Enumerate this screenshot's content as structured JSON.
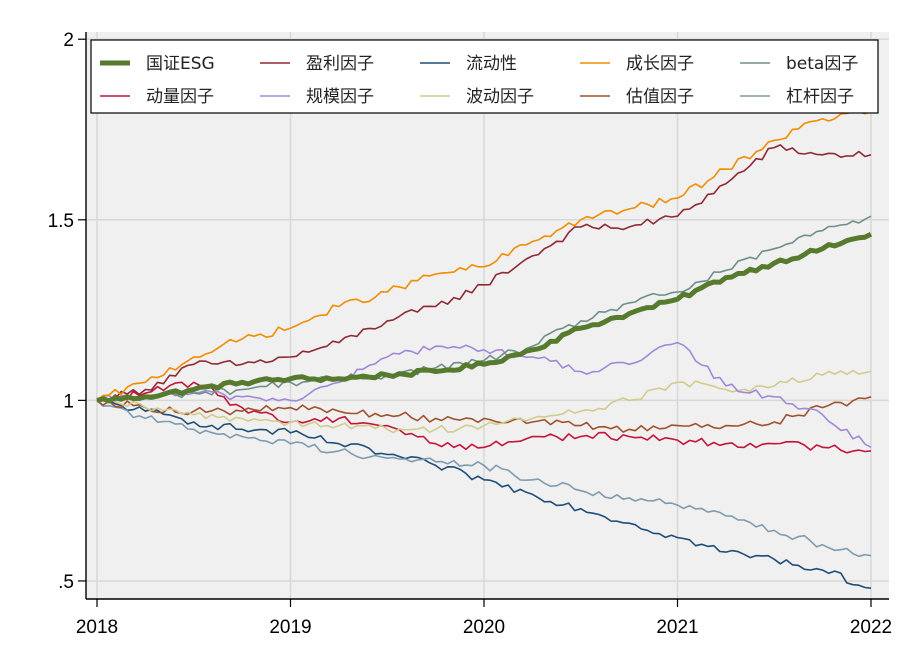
{
  "chart_data": {
    "type": "line",
    "title": "",
    "xlabel": "",
    "ylabel": "",
    "x_ticks": [
      "2018",
      "2019",
      "2020",
      "2021",
      "2022"
    ],
    "y_ticks": [
      ".5",
      "1",
      "1.5",
      "2"
    ],
    "y_tick_values": [
      0.5,
      1,
      1.5,
      2
    ],
    "x_tick_values": [
      2018,
      2019,
      2020,
      2021,
      2022
    ],
    "xlim": [
      2018,
      2022
    ],
    "ylim": [
      0.45,
      2.02
    ],
    "grid": true,
    "legend_position": "top",
    "x": [
      2018.0,
      2018.25,
      2018.5,
      2018.75,
      2019.0,
      2019.25,
      2019.5,
      2019.75,
      2020.0,
      2020.25,
      2020.5,
      2020.75,
      2021.0,
      2021.25,
      2021.5,
      2021.75,
      2022.0
    ],
    "series": [
      {
        "name": "国证ESG",
        "color": "#567a2e",
        "width": 5,
        "values": [
          1.0,
          1.01,
          1.03,
          1.05,
          1.06,
          1.06,
          1.07,
          1.08,
          1.1,
          1.14,
          1.2,
          1.24,
          1.28,
          1.34,
          1.38,
          1.42,
          1.46
        ]
      },
      {
        "name": "盈利因子",
        "color": "#8e2a35",
        "width": 1.6,
        "values": [
          1.0,
          1.03,
          1.1,
          1.1,
          1.12,
          1.16,
          1.22,
          1.26,
          1.32,
          1.4,
          1.48,
          1.48,
          1.51,
          1.6,
          1.7,
          1.68,
          1.68
        ]
      },
      {
        "name": "流动性",
        "color": "#1f4e79",
        "width": 1.6,
        "values": [
          1.0,
          0.97,
          0.94,
          0.92,
          0.91,
          0.88,
          0.85,
          0.82,
          0.78,
          0.74,
          0.7,
          0.66,
          0.62,
          0.58,
          0.56,
          0.53,
          0.48
        ]
      },
      {
        "name": "成长因子",
        "color": "#f08c00",
        "width": 1.6,
        "values": [
          1.0,
          1.05,
          1.12,
          1.17,
          1.2,
          1.26,
          1.3,
          1.35,
          1.37,
          1.44,
          1.5,
          1.53,
          1.56,
          1.64,
          1.72,
          1.78,
          1.8
        ]
      },
      {
        "name": "beta因子",
        "color": "#6f8f8a",
        "width": 1.6,
        "values": [
          1.0,
          1.01,
          1.02,
          1.03,
          1.05,
          1.06,
          1.07,
          1.09,
          1.11,
          1.15,
          1.22,
          1.27,
          1.3,
          1.36,
          1.42,
          1.47,
          1.51
        ]
      },
      {
        "name": "动量因子",
        "color": "#c4163c",
        "width": 1.6,
        "values": [
          1.0,
          1.02,
          1.05,
          0.98,
          0.94,
          0.95,
          0.93,
          0.88,
          0.87,
          0.9,
          0.9,
          0.9,
          0.89,
          0.88,
          0.88,
          0.87,
          0.86
        ]
      },
      {
        "name": "规模因子",
        "color": "#a08ad8",
        "width": 1.6,
        "values": [
          1.0,
          1.01,
          1.02,
          1.01,
          1.0,
          1.05,
          1.12,
          1.15,
          1.14,
          1.12,
          1.08,
          1.1,
          1.16,
          1.04,
          1.01,
          0.96,
          0.87
        ]
      },
      {
        "name": "波动因子",
        "color": "#d2cc8c",
        "width": 1.6,
        "values": [
          1.0,
          0.98,
          0.96,
          0.95,
          0.94,
          0.93,
          0.92,
          0.92,
          0.93,
          0.95,
          0.97,
          1.0,
          1.05,
          1.03,
          1.04,
          1.07,
          1.08
        ]
      },
      {
        "name": "估值因子",
        "color": "#a0522d",
        "width": 1.6,
        "values": [
          1.0,
          0.98,
          0.97,
          0.97,
          0.98,
          0.97,
          0.96,
          0.95,
          0.95,
          0.94,
          0.93,
          0.92,
          0.93,
          0.93,
          0.94,
          0.98,
          1.01
        ]
      },
      {
        "name": "杠杆因子",
        "color": "#7f9bb0",
        "width": 1.6,
        "values": [
          1.0,
          0.95,
          0.92,
          0.9,
          0.88,
          0.86,
          0.84,
          0.83,
          0.82,
          0.78,
          0.75,
          0.73,
          0.71,
          0.68,
          0.64,
          0.6,
          0.57
        ]
      }
    ]
  }
}
